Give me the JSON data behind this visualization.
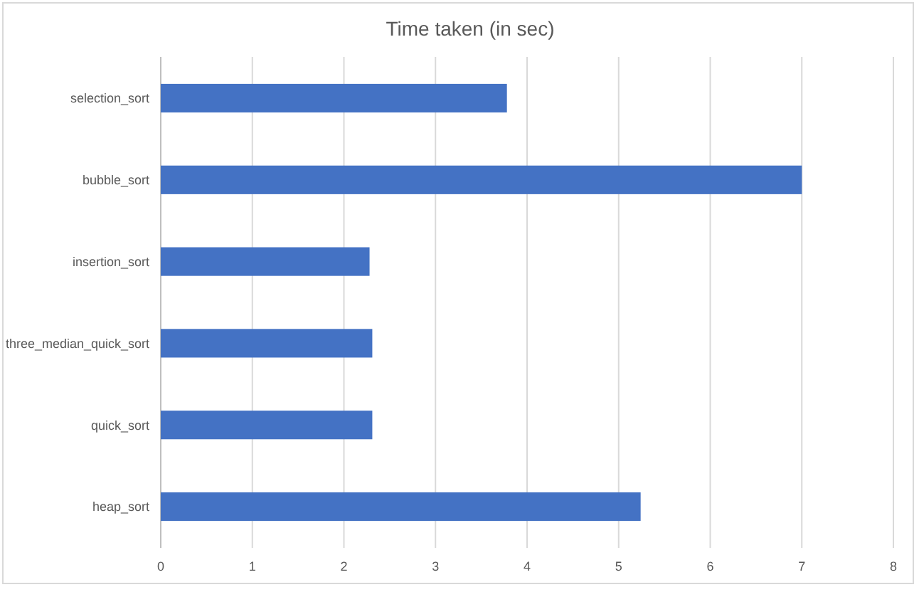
{
  "chart_data": {
    "type": "bar",
    "orientation": "horizontal",
    "title": "Time taken (in sec)",
    "categories": [
      "selection_sort",
      "bubble_sort",
      "insertion_sort",
      "three_median_quick_sort",
      "quick_sort",
      "heap_sort"
    ],
    "values": [
      3.78,
      7.0,
      2.28,
      2.31,
      2.31,
      5.24
    ],
    "color": "#4472c4",
    "xlim": [
      0,
      8
    ],
    "xticks": [
      0,
      1,
      2,
      3,
      4,
      5,
      6,
      7,
      8
    ],
    "grid": "x"
  }
}
